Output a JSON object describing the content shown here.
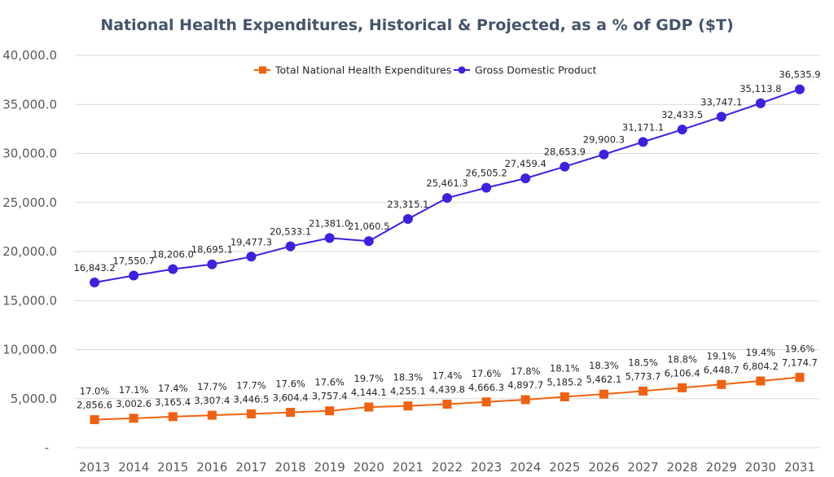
{
  "chart_data": {
    "type": "line",
    "title": "National Health Expenditures, Historical & Projected, as a % of GDP ($T)",
    "xlabel": "",
    "ylabel": "",
    "ylim": [
      0,
      40000
    ],
    "yticks": [
      "-",
      "5,000.0",
      "10,000.0",
      "15,000.0",
      "20,000.0",
      "25,000.0",
      "30,000.0",
      "35,000.0",
      "40,000.0"
    ],
    "grid": true,
    "legend_position": "top-center",
    "categories": [
      "2013",
      "2014",
      "2015",
      "2016",
      "2017",
      "2018",
      "2019",
      "2020",
      "2021",
      "2022",
      "2023",
      "2024",
      "2025",
      "2026",
      "2027",
      "2028",
      "2029",
      "2030",
      "2031"
    ],
    "series": [
      {
        "name": "Total National Health Expenditures",
        "color": "#f0620f",
        "marker": "square",
        "values": [
          2856.6,
          3002.6,
          3165.4,
          3307.4,
          3446.5,
          3604.4,
          3757.4,
          4144.1,
          4255.1,
          4439.8,
          4666.3,
          4897.7,
          5185.2,
          5462.1,
          5773.7,
          6106.4,
          6448.7,
          6804.2,
          7174.7
        ],
        "value_labels": [
          "2,856.6",
          "3,002.6",
          "3,165.4",
          "3,307.4",
          "3,446.5",
          "3,604.4",
          "3,757.4",
          "4,144.1",
          "4,255.1",
          "4,439.8",
          "4,666.3",
          "4,897.7",
          "5,185.2",
          "5,462.1",
          "5,773.7",
          "6,106.4",
          "6,448.7",
          "6,804.2",
          "7,174.7"
        ],
        "pct_labels": [
          "17.0%",
          "17.1%",
          "17.4%",
          "17.7%",
          "17.7%",
          "17.6%",
          "17.6%",
          "19.7%",
          "18.3%",
          "17.4%",
          "17.6%",
          "17.8%",
          "18.1%",
          "18.3%",
          "18.5%",
          "18.8%",
          "19.1%",
          "19.4%",
          "19.6%"
        ]
      },
      {
        "name": "Gross Domestic Product",
        "color": "#3a22e0",
        "marker": "circle",
        "values": [
          16843.2,
          17550.7,
          18206.0,
          18695.1,
          19477.3,
          20533.1,
          21381.0,
          21060.5,
          23315.1,
          25461.3,
          26505.2,
          27459.4,
          28653.9,
          29900.3,
          31171.1,
          32433.5,
          33747.1,
          35113.8,
          36535.9
        ],
        "value_labels": [
          "16,843.2",
          "17,550.7",
          "18,206.0",
          "18,695.1",
          "19,477.3",
          "20,533.1",
          "21,381.0",
          "21,060.5",
          "23,315.1",
          "25,461.3",
          "26,505.2",
          "27,459.4",
          "28,653.9",
          "29,900.3",
          "31,171.1",
          "32,433.5",
          "33,747.1",
          "35,113.8",
          "36,535.9"
        ]
      }
    ],
    "colors": {
      "grid": "#d9d9d9",
      "axis_text": "#595959",
      "title": "#44546a"
    }
  }
}
